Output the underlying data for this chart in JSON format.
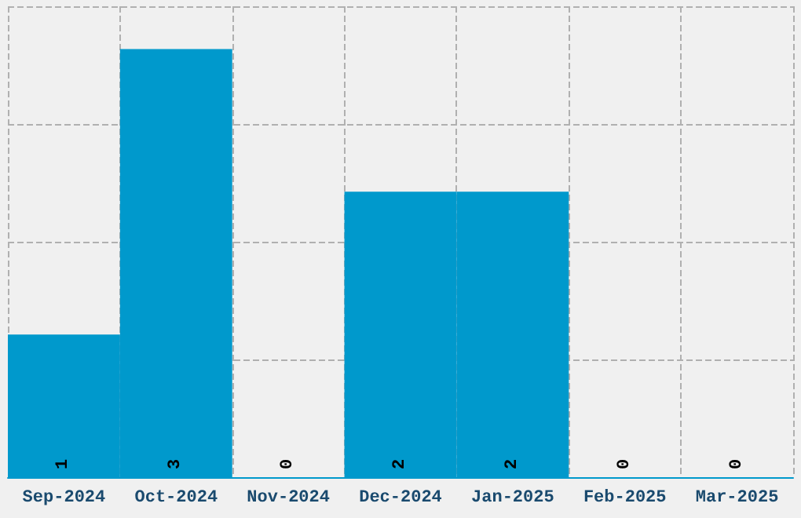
{
  "chart_data": {
    "type": "bar",
    "categories": [
      "Sep-2024",
      "Oct-2024",
      "Nov-2024",
      "Dec-2024",
      "Jan-2025",
      "Feb-2025",
      "Mar-2025"
    ],
    "values": [
      1,
      3,
      0,
      2,
      2,
      0,
      0
    ],
    "color": "#0099cc",
    "data_labels": true,
    "ylim": [
      0,
      3.3
    ],
    "grid": true,
    "tick_labels": "x"
  }
}
